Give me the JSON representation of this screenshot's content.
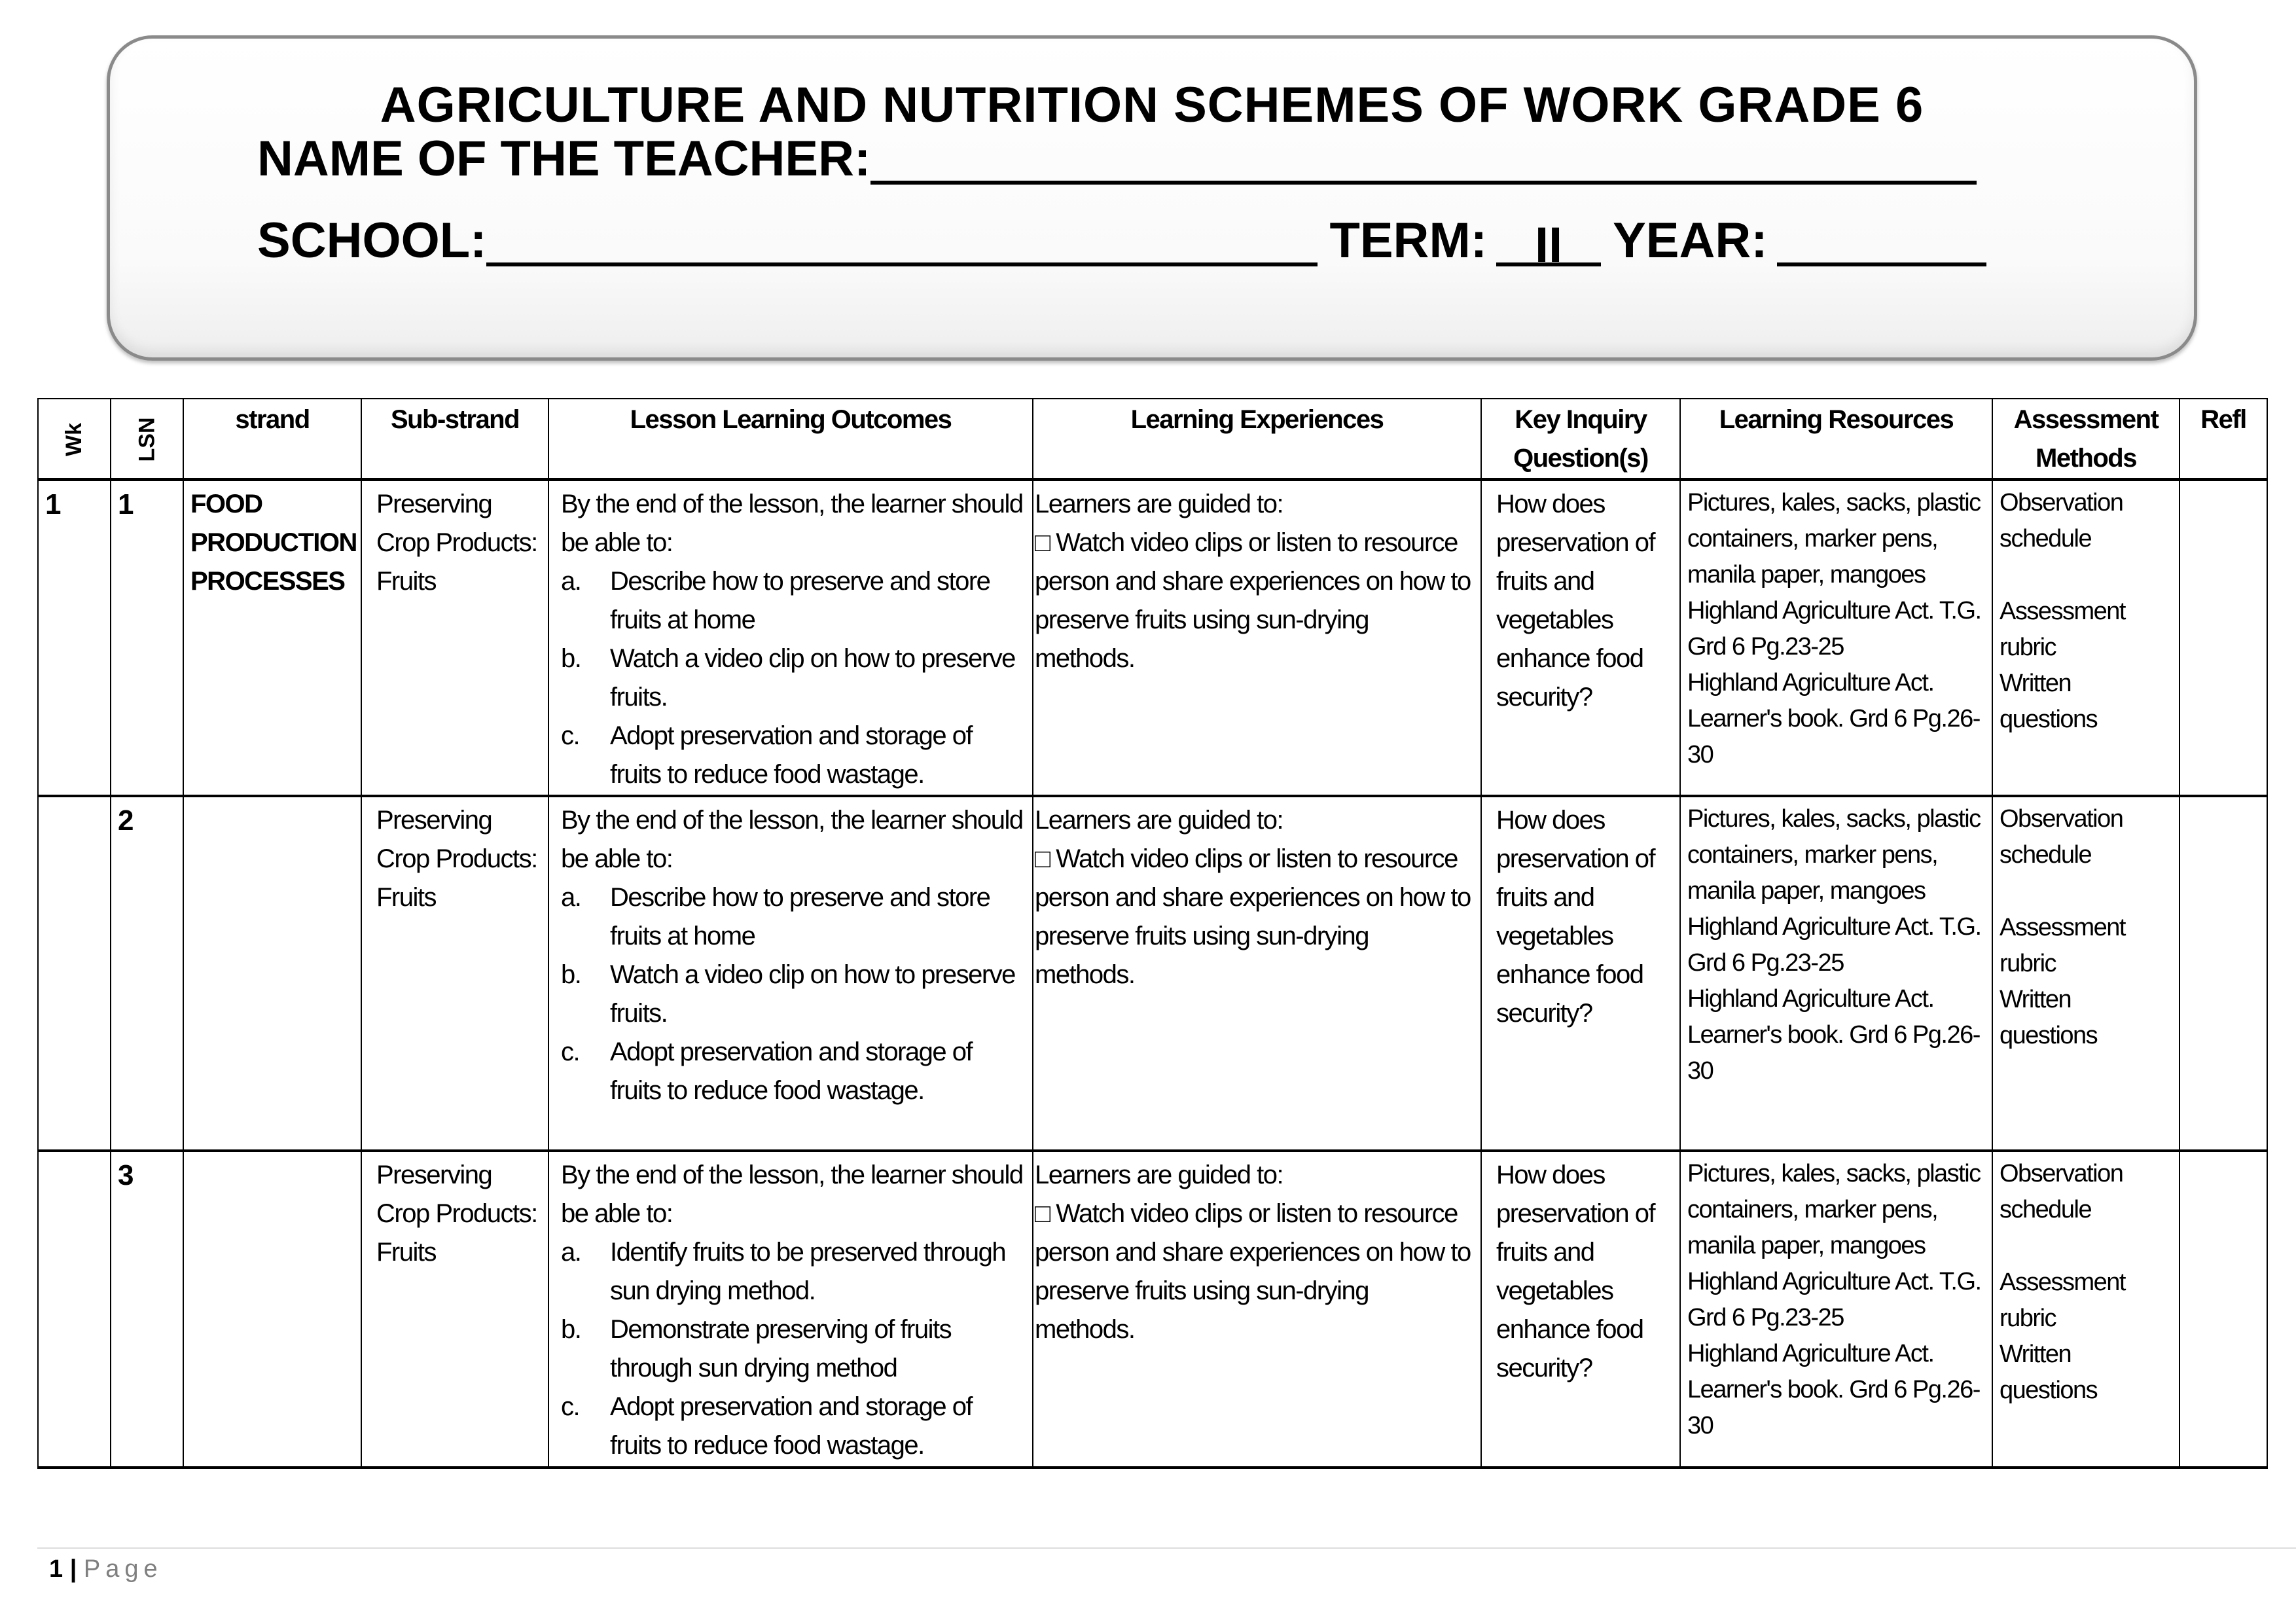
{
  "header": {
    "title": "AGRICULTURE AND NUTRITION SCHEMES OF WORK GRADE 6",
    "teacher_label": "NAME OF THE TEACHER:",
    "teacher_value": "",
    "school_label": "SCHOOL:",
    "school_value": "",
    "term_label": "TERM:",
    "term_value": "II",
    "year_label": "YEAR:",
    "year_value": ""
  },
  "table": {
    "columns": [
      "Wk",
      "LSN",
      "strand",
      "Sub-strand",
      "Lesson Learning Outcomes",
      "Learning Experiences",
      "Key Inquiry Question(s)",
      "Learning Resources",
      "Assessment Methods",
      "Refl"
    ],
    "rows": [
      {
        "wk": "1",
        "lsn": "1",
        "strand": "FOOD PRODUCTION PROCESSES",
        "substrand": "Preserving Crop Products: Fruits",
        "outcomes_intro": "By the end of the lesson, the learner should be able to:",
        "outcomes": [
          {
            "letter": "a.",
            "text": "Describe how to preserve and store fruits at home"
          },
          {
            "letter": "b.",
            "text": "Watch a video clip on how to preserve fruits."
          },
          {
            "letter": "c.",
            "text": "Adopt preservation and storage of fruits to reduce food wastage."
          }
        ],
        "experiences_intro": "Learners are guided to:",
        "experiences": "□ Watch video clips or listen to resource person and share experiences on how to preserve fruits using sun-drying methods.",
        "inquiry": "How does preservation of fruits and vegetables enhance food security?",
        "resources": [
          "Pictures, kales, sacks, plastic containers, marker pens, manila paper, mangoes",
          "Highland Agriculture Act. T.G. Grd 6 Pg.23-25",
          "Highland Agriculture Act. Learner's book. Grd 6 Pg.26-30"
        ],
        "assessment": [
          "Observation schedule",
          "Assessment rubric",
          "Written questions"
        ],
        "refl": ""
      },
      {
        "wk": "",
        "lsn": "2",
        "strand": "",
        "substrand": "Preserving Crop Products: Fruits",
        "outcomes_intro": "By the end of the lesson, the learner should be able to:",
        "outcomes": [
          {
            "letter": "a.",
            "text": "Describe how to preserve and store fruits at home"
          },
          {
            "letter": "b.",
            "text": "Watch a video clip on how to preserve fruits."
          },
          {
            "letter": "c.",
            "text": "Adopt preservation and storage of fruits to reduce food wastage."
          }
        ],
        "experiences_intro": "Learners are guided to:",
        "experiences": "□ Watch video clips or listen to resource person and share experiences on how to preserve fruits using sun-drying methods.",
        "inquiry": "How does preservation of fruits and vegetables enhance food security?",
        "resources": [
          "Pictures, kales, sacks, plastic containers, marker pens, manila paper, mangoes",
          "Highland Agriculture Act. T.G. Grd 6 Pg.23-25",
          "Highland Agriculture Act. Learner's book. Grd 6 Pg.26-30"
        ],
        "assessment": [
          "Observation schedule",
          "Assessment rubric",
          "Written questions"
        ],
        "refl": ""
      },
      {
        "wk": "",
        "lsn": "3",
        "strand": "",
        "substrand": "Preserving Crop Products: Fruits",
        "outcomes_intro": "By the end of the lesson, the learner should be able to:",
        "outcomes": [
          {
            "letter": "a.",
            "text": "Identify fruits to be preserved through sun drying method."
          },
          {
            "letter": "b.",
            "text": "Demonstrate preserving of fruits through sun drying method"
          },
          {
            "letter": "c.",
            "text": "Adopt preservation and storage of fruits to reduce food wastage."
          }
        ],
        "experiences_intro": "Learners are guided to:",
        "experiences": "□ Watch video clips or listen to resource person and share experiences on how to preserve fruits using sun-drying methods.",
        "inquiry": "How does preservation of fruits and vegetables enhance food security?",
        "resources": [
          "Pictures, kales, sacks, plastic containers, marker pens, manila paper, mangoes",
          "Highland Agriculture Act. T.G. Grd 6 Pg.23-25",
          "Highland Agriculture Act. Learner's book. Grd 6 Pg.26-30"
        ],
        "assessment": [
          "Observation schedule",
          "Assessment rubric",
          "Written questions"
        ],
        "refl": ""
      }
    ]
  },
  "footer": {
    "page_number": "1",
    "separator": "|",
    "page_label": "Page"
  }
}
